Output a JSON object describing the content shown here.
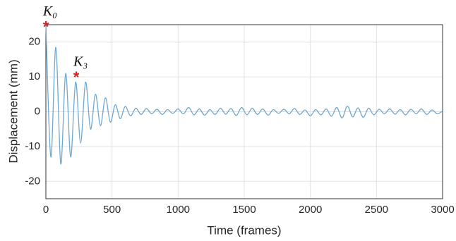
{
  "chart_data": {
    "type": "line",
    "xlabel": "Time (frames)",
    "ylabel": "Displacement (mm)",
    "x": [
      0,
      37.5,
      75,
      112.5,
      150,
      187.5,
      225,
      262.5,
      300,
      337.5,
      375,
      412.5,
      450,
      487.5,
      525,
      562.5,
      600,
      640,
      680,
      720,
      760,
      800,
      840,
      880,
      920,
      960,
      1000,
      1040,
      1080,
      1120,
      1160,
      1200,
      1240,
      1280,
      1320,
      1360,
      1400,
      1440,
      1480,
      1520,
      1560,
      1600,
      1640,
      1680,
      1720,
      1760,
      1800,
      1840,
      1880,
      1920,
      1960,
      2000,
      2040,
      2080,
      2120,
      2160,
      2200,
      2240,
      2280,
      2320,
      2360,
      2400,
      2440,
      2480,
      2520,
      2560,
      2600,
      2640,
      2680,
      2720,
      2760,
      2800,
      2840,
      2880,
      2920,
      2960,
      3000
    ],
    "series": [
      {
        "color": "#6fa8d0",
        "values": [
          25,
          -13,
          18.5,
          -15,
          11,
          -13,
          8.5,
          -9,
          8.5,
          -5,
          5,
          -4,
          4,
          -3,
          2,
          -2,
          1.5,
          -1.2,
          1.0,
          -0.8,
          0.9,
          -0.6,
          0.7,
          -0.8,
          0.6,
          -0.5,
          0.8,
          -0.6,
          1.2,
          -0.9,
          0.8,
          -1.0,
          0.6,
          -0.8,
          1.0,
          -0.7,
          0.9,
          -1.1,
          1.2,
          -0.9,
          1.0,
          -0.8,
          0.8,
          -1.0,
          0.6,
          -0.5,
          0.7,
          -0.6,
          0.9,
          -0.8,
          0.5,
          -1.2,
          0.6,
          -0.9,
          0.8,
          -1.3,
          1.2,
          -1.8,
          1.6,
          -1.5,
          1.1,
          -1.6,
          1.0,
          -0.9,
          0.7,
          -0.6,
          0.8,
          -0.7,
          0.6,
          -0.9,
          0.7,
          -0.6,
          0.8,
          -0.8,
          0.5,
          -0.6,
          0.2
        ]
      }
    ],
    "markers": [
      {
        "label": "K₀",
        "x": 0,
        "y": 24.5,
        "color": "#d62728"
      },
      {
        "label": "K₃",
        "x": 230,
        "y": 10,
        "color": "#d62728"
      }
    ],
    "xlim": [
      0,
      3000
    ],
    "xticks": [
      0,
      500,
      1000,
      1500,
      2000,
      2500,
      3000
    ],
    "ylim": [
      -25,
      25
    ],
    "yticks": [
      -20,
      -10,
      0,
      10,
      20
    ],
    "grid": true
  }
}
